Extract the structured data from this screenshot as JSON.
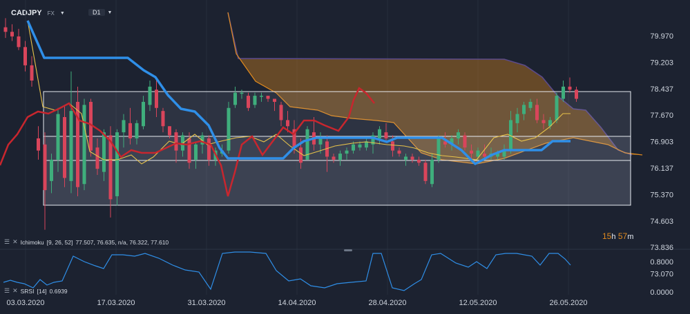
{
  "header": {
    "symbol": "CADJPY",
    "market": "FX",
    "timeframe": "D1"
  },
  "colors": {
    "background": "#1c2230",
    "up": "#3fae7c",
    "down": "#d9455b",
    "kijun": "#2f8fe8",
    "tenkan": "#e8c34a",
    "chikou": "#c8262e",
    "cloud": "#8a5a1c",
    "cloud_line": "#e08a1e",
    "span_b": "#5b4a8a",
    "srsi": "#2f8fe8",
    "countdown": "#e08a1e"
  },
  "price_axis": [
    "79.970",
    "79.203",
    "78.437",
    "77.670",
    "76.903",
    "76.137",
    "75.370",
    "74.603",
    "73.836",
    "73.070"
  ],
  "osc_axis": [
    "0.8000",
    "0.0000"
  ],
  "date_axis": [
    "03.03.2020",
    "17.03.2020",
    "31.03.2020",
    "14.04.2020",
    "28.04.2020",
    "12.05.2020",
    "26.05.2020"
  ],
  "countdown": {
    "hours": "15",
    "h": "h",
    "minutes": "57",
    "m": "m"
  },
  "ichimoku_label": {
    "name": "Ichimoku",
    "params": "[9, 26, 52]",
    "values": "77.507, 76.635, n/a, 76.322, 77.610"
  },
  "srsi_label": {
    "name": "SRSI",
    "params": "[14]",
    "value": "0.6939"
  },
  "chart_data": {
    "type": "candlestick",
    "ylim": [
      73.07,
      80.5
    ],
    "candles": [
      [
        80.25,
        80.55,
        79.9,
        80.1
      ],
      [
        80.1,
        80.35,
        79.8,
        79.95
      ],
      [
        79.95,
        80.2,
        79.5,
        79.6
      ],
      [
        79.6,
        79.8,
        78.8,
        79.0
      ],
      [
        79.0,
        79.3,
        78.3,
        78.5
      ],
      [
        76.6,
        77.0,
        75.9,
        76.2
      ],
      [
        76.4,
        76.8,
        73.6,
        74.9
      ],
      [
        75.2,
        76.1,
        74.8,
        75.9
      ],
      [
        75.9,
        77.6,
        75.5,
        77.4
      ],
      [
        77.3,
        77.7,
        75.0,
        75.3
      ],
      [
        75.2,
        78.8,
        74.8,
        77.5
      ],
      [
        77.8,
        78.3,
        74.7,
        75.0
      ],
      [
        75.1,
        77.9,
        74.9,
        77.7
      ],
      [
        77.8,
        77.9,
        76.0,
        76.2
      ],
      [
        76.3,
        76.6,
        75.4,
        75.6
      ],
      [
        75.5,
        76.9,
        75.2,
        76.8
      ],
      [
        76.7,
        77.0,
        74.0,
        74.6
      ],
      [
        74.7,
        76.9,
        74.4,
        76.8
      ],
      [
        76.8,
        77.4,
        76.3,
        77.2
      ],
      [
        77.1,
        77.6,
        76.4,
        76.6
      ],
      [
        76.6,
        77.2,
        76.4,
        77.1
      ],
      [
        77.0,
        78.0,
        76.9,
        77.8
      ],
      [
        77.7,
        78.5,
        77.5,
        78.3
      ],
      [
        78.2,
        78.5,
        77.3,
        77.6
      ],
      [
        77.5,
        77.6,
        76.8,
        77.0
      ],
      [
        77.0,
        77.0,
        76.6,
        76.7
      ],
      [
        76.8,
        76.9,
        75.8,
        76.2
      ],
      [
        76.2,
        76.8,
        76.0,
        76.7
      ],
      [
        76.6,
        76.8,
        75.6,
        75.8
      ],
      [
        75.9,
        76.5,
        75.6,
        76.4
      ],
      [
        76.4,
        76.8,
        76.1,
        76.7
      ],
      [
        76.6,
        76.7,
        75.7,
        75.9
      ],
      [
        75.9,
        76.3,
        75.7,
        76.2
      ],
      [
        76.1,
        76.4,
        76.0,
        76.2
      ],
      [
        76.2,
        77.8,
        76.1,
        77.6
      ],
      [
        77.7,
        78.3,
        77.6,
        78.1
      ],
      [
        78.1,
        78.2,
        77.9,
        78.1
      ],
      [
        78.0,
        78.1,
        77.5,
        77.6
      ],
      [
        77.7,
        78.1,
        77.6,
        78.0
      ],
      [
        78.0,
        78.1,
        77.8,
        78.0
      ],
      [
        78.0,
        78.0,
        77.8,
        77.9
      ],
      [
        77.9,
        77.9,
        77.5,
        77.8
      ],
      [
        77.7,
        77.8,
        77.0,
        77.2
      ],
      [
        77.2,
        77.5,
        76.8,
        77.0
      ],
      [
        76.9,
        77.2,
        76.1,
        76.3
      ],
      [
        76.3,
        76.6,
        75.6,
        75.8
      ],
      [
        75.9,
        77.0,
        75.9,
        76.9
      ],
      [
        76.8,
        77.3,
        76.2,
        76.4
      ],
      [
        76.4,
        76.8,
        76.1,
        76.6
      ],
      [
        76.5,
        76.7,
        75.5,
        76.0
      ],
      [
        76.0,
        76.1,
        75.8,
        75.9
      ],
      [
        75.9,
        76.2,
        75.7,
        76.1
      ],
      [
        76.1,
        76.3,
        75.9,
        76.2
      ],
      [
        76.2,
        76.5,
        76.1,
        76.4
      ],
      [
        76.3,
        76.5,
        76.2,
        76.4
      ],
      [
        76.3,
        76.6,
        76.2,
        76.5
      ],
      [
        76.4,
        76.8,
        76.1,
        76.7
      ],
      [
        76.6,
        77.0,
        76.4,
        76.9
      ],
      [
        76.8,
        77.1,
        76.5,
        76.6
      ],
      [
        76.5,
        76.7,
        76.0,
        76.2
      ],
      [
        76.2,
        76.3,
        76.0,
        76.1
      ],
      [
        75.9,
        76.1,
        75.7,
        76.0
      ],
      [
        76.0,
        76.1,
        75.8,
        75.9
      ],
      [
        75.9,
        76.0,
        75.7,
        75.8
      ],
      [
        75.8,
        75.9,
        75.1,
        75.2
      ],
      [
        75.1,
        76.1,
        75.0,
        75.9
      ],
      [
        75.9,
        76.7,
        75.8,
        76.6
      ],
      [
        76.5,
        76.8,
        76.3,
        76.4
      ],
      [
        76.4,
        76.7,
        76.2,
        76.6
      ],
      [
        76.6,
        76.9,
        76.4,
        76.8
      ],
      [
        76.7,
        76.8,
        76.2,
        76.3
      ],
      [
        76.2,
        76.4,
        75.9,
        76.1
      ],
      [
        76.0,
        76.3,
        75.9,
        76.2
      ],
      [
        76.1,
        76.4,
        75.9,
        76.0
      ],
      [
        76.0,
        76.3,
        75.9,
        76.1
      ],
      [
        76.0,
        76.2,
        75.9,
        76.1
      ],
      [
        76.0,
        76.4,
        75.9,
        76.2
      ],
      [
        76.2,
        77.5,
        76.1,
        77.2
      ],
      [
        77.1,
        77.6,
        76.8,
        77.4
      ],
      [
        77.4,
        77.8,
        77.2,
        77.7
      ],
      [
        77.6,
        77.9,
        77.5,
        77.8
      ],
      [
        77.7,
        77.9,
        77.1,
        77.2
      ],
      [
        77.2,
        77.4,
        76.9,
        77.1
      ],
      [
        77.0,
        77.3,
        76.9,
        77.2
      ],
      [
        77.2,
        78.1,
        77.1,
        78.0
      ],
      [
        77.9,
        78.5,
        77.8,
        78.3
      ],
      [
        78.3,
        78.6,
        78.1,
        78.2
      ],
      [
        78.2,
        78.3,
        77.8,
        77.9
      ]
    ],
    "kijun": [
      [
        40,
        30
      ],
      [
        64,
        84
      ],
      [
        185,
        84
      ],
      [
        208,
        102
      ],
      [
        225,
        112
      ],
      [
        243,
        138
      ],
      [
        262,
        158
      ],
      [
        282,
        162
      ],
      [
        302,
        182
      ],
      [
        318,
        215
      ],
      [
        330,
        230
      ],
      [
        410,
        230
      ],
      [
        425,
        215
      ],
      [
        440,
        205
      ],
      [
        458,
        200
      ],
      [
        540,
        200
      ],
      [
        560,
        206
      ],
      [
        575,
        200
      ],
      [
        640,
        200
      ],
      [
        668,
        218
      ],
      [
        688,
        238
      ],
      [
        712,
        225
      ],
      [
        730,
        218
      ],
      [
        784,
        218
      ],
      [
        800,
        205
      ],
      [
        826,
        205
      ]
    ],
    "tenkan": [
      [
        40,
        30
      ],
      [
        62,
        155
      ],
      [
        80,
        160
      ],
      [
        100,
        150
      ],
      [
        118,
        165
      ],
      [
        130,
        220
      ],
      [
        150,
        232
      ],
      [
        170,
        232
      ],
      [
        190,
        225
      ],
      [
        205,
        238
      ],
      [
        222,
        228
      ],
      [
        245,
        205
      ],
      [
        262,
        210
      ],
      [
        282,
        195
      ],
      [
        300,
        210
      ],
      [
        320,
        205
      ],
      [
        342,
        200
      ],
      [
        362,
        198
      ],
      [
        382,
        206
      ],
      [
        400,
        195
      ],
      [
        420,
        212
      ],
      [
        440,
        226
      ],
      [
        460,
        220
      ],
      [
        485,
        212
      ],
      [
        510,
        208
      ],
      [
        530,
        206
      ],
      [
        560,
        210
      ],
      [
        585,
        212
      ],
      [
        600,
        215
      ],
      [
        620,
        222
      ],
      [
        640,
        226
      ],
      [
        660,
        228
      ],
      [
        690,
        232
      ],
      [
        715,
        200
      ],
      [
        735,
        195
      ],
      [
        755,
        205
      ],
      [
        775,
        200
      ],
      [
        795,
        185
      ],
      [
        815,
        165
      ],
      [
        826,
        165
      ]
    ],
    "chikou": [
      [
        0,
        240
      ],
      [
        12,
        210
      ],
      [
        25,
        195
      ],
      [
        40,
        170
      ],
      [
        55,
        162
      ],
      [
        70,
        165
      ],
      [
        85,
        158
      ],
      [
        100,
        150
      ],
      [
        115,
        175
      ],
      [
        130,
        180
      ],
      [
        145,
        190
      ],
      [
        160,
        205
      ],
      [
        175,
        228
      ],
      [
        190,
        218
      ],
      [
        205,
        222
      ],
      [
        225,
        222
      ],
      [
        240,
        215
      ],
      [
        255,
        208
      ],
      [
        270,
        210
      ],
      [
        290,
        205
      ],
      [
        305,
        210
      ],
      [
        320,
        240
      ],
      [
        330,
        285
      ],
      [
        340,
        250
      ],
      [
        350,
        210
      ],
      [
        365,
        198
      ],
      [
        380,
        225
      ],
      [
        395,
        205
      ],
      [
        410,
        185
      ],
      [
        425,
        195
      ],
      [
        440,
        175
      ],
      [
        455,
        175
      ],
      [
        470,
        182
      ],
      [
        490,
        190
      ],
      [
        505,
        170
      ],
      [
        512,
        145
      ],
      [
        520,
        128
      ],
      [
        530,
        135
      ],
      [
        542,
        150
      ]
    ],
    "cloud_upper": [
      [
        330,
        18
      ],
      [
        345,
        85
      ],
      [
        730,
        86
      ],
      [
        760,
        95
      ],
      [
        785,
        112
      ],
      [
        808,
        140
      ],
      [
        830,
        158
      ],
      [
        848,
        160
      ],
      [
        870,
        185
      ],
      [
        895,
        218
      ],
      [
        915,
        225
      ]
    ],
    "cloud_lower": [
      [
        330,
        18
      ],
      [
        342,
        78
      ],
      [
        370,
        118
      ],
      [
        400,
        135
      ],
      [
        420,
        155
      ],
      [
        460,
        160
      ],
      [
        480,
        168
      ],
      [
        510,
        172
      ],
      [
        545,
        175
      ],
      [
        570,
        178
      ],
      [
        590,
        200
      ],
      [
        610,
        222
      ],
      [
        640,
        232
      ],
      [
        690,
        238
      ],
      [
        730,
        230
      ],
      [
        790,
        208
      ],
      [
        830,
        200
      ],
      [
        880,
        210
      ],
      [
        905,
        222
      ],
      [
        930,
        225
      ]
    ],
    "boxes": [
      [
        63,
        133,
        850,
        100
      ],
      [
        63,
        198,
        850,
        100
      ],
      [
        63,
        233,
        850,
        65
      ]
    ],
    "srsi": [
      [
        5,
        410
      ],
      [
        15,
        407
      ],
      [
        25,
        410
      ],
      [
        35,
        412
      ],
      [
        48,
        418
      ],
      [
        58,
        406
      ],
      [
        68,
        414
      ],
      [
        78,
        410
      ],
      [
        90,
        408
      ],
      [
        106,
        372
      ],
      [
        122,
        380
      ],
      [
        138,
        386
      ],
      [
        150,
        390
      ],
      [
        162,
        370
      ],
      [
        178,
        370
      ],
      [
        195,
        372
      ],
      [
        210,
        368
      ],
      [
        230,
        375
      ],
      [
        250,
        385
      ],
      [
        268,
        392
      ],
      [
        288,
        395
      ],
      [
        305,
        420
      ],
      [
        322,
        368
      ],
      [
        340,
        366
      ],
      [
        362,
        366
      ],
      [
        385,
        368
      ],
      [
        400,
        393
      ],
      [
        418,
        408
      ],
      [
        435,
        405
      ],
      [
        450,
        415
      ],
      [
        470,
        418
      ],
      [
        488,
        412
      ],
      [
        508,
        410
      ],
      [
        530,
        408
      ],
      [
        540,
        368
      ],
      [
        552,
        368
      ],
      [
        568,
        418
      ],
      [
        585,
        422
      ],
      [
        600,
        412
      ],
      [
        610,
        406
      ],
      [
        625,
        370
      ],
      [
        638,
        368
      ],
      [
        660,
        382
      ],
      [
        678,
        388
      ],
      [
        690,
        380
      ],
      [
        705,
        390
      ],
      [
        718,
        370
      ],
      [
        732,
        368
      ],
      [
        748,
        368
      ],
      [
        770,
        372
      ],
      [
        782,
        385
      ],
      [
        795,
        368
      ],
      [
        808,
        368
      ],
      [
        818,
        376
      ],
      [
        826,
        385
      ]
    ]
  }
}
